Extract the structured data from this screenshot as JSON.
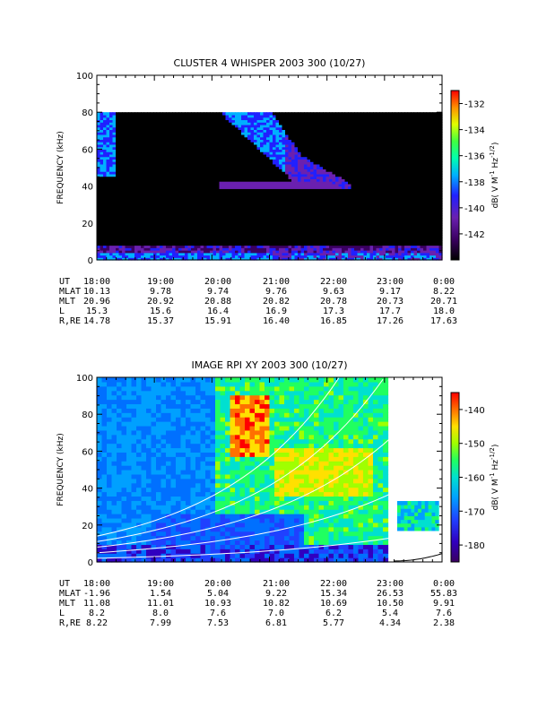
{
  "chart_data": [
    {
      "type": "heatmap",
      "title": "CLUSTER 4 WHISPER 2003 300 (10/27)",
      "ylabel": "FREQUENCY (kHz)",
      "ylim": [
        0,
        100
      ],
      "yticks": [
        "0",
        "20",
        "40",
        "60",
        "80",
        "100"
      ],
      "x_time_labels": [
        "18:00",
        "19:00",
        "20:00",
        "21:00",
        "22:00",
        "23:00",
        "0:00"
      ],
      "colorbar": {
        "label": "dB( V M",
        "label_parts": [
          "dB( V M",
          "-1",
          " Hz",
          "-1/2",
          ")"
        ],
        "range": [
          -144,
          -131
        ],
        "ticks": [
          "-132",
          "-134",
          "-136",
          "-138",
          "-140",
          "-142"
        ]
      },
      "data_range_khz": [
        0,
        80
      ],
      "features": [
        {
          "name": "broadband emission 18:00-18:05",
          "freq_khz": [
            45,
            80
          ]
        },
        {
          "name": "funnel-shaped emission 20:10-22:40",
          "freq_khz": [
            38,
            80
          ]
        }
      ],
      "ephemeris": {
        "row_labels": [
          "UT",
          "MLAT",
          "MLT",
          "L",
          "R,RE"
        ],
        "UT": [
          "18:00",
          "19:00",
          "20:00",
          "21:00",
          "22:00",
          "23:00",
          "0:00"
        ],
        "MLAT": [
          "10.13",
          "9.78",
          "9.74",
          "9.76",
          "9.63",
          "9.17",
          "8.22"
        ],
        "MLT": [
          "20.96",
          "20.92",
          "20.88",
          "20.82",
          "20.78",
          "20.73",
          "20.71"
        ],
        "L": [
          "15.3",
          "15.6",
          "16.4",
          "16.9",
          "17.3",
          "17.7",
          "18.0"
        ],
        "R,RE": [
          "14.78",
          "15.37",
          "15.91",
          "16.40",
          "16.85",
          "17.26",
          "17.63"
        ]
      }
    },
    {
      "type": "heatmap",
      "title": "IMAGE RPI XY 2003 300 (10/27)",
      "ylabel": "FREQUENCY (kHz)",
      "ylim": [
        0,
        100
      ],
      "yticks": [
        "0",
        "20",
        "40",
        "60",
        "80",
        "100"
      ],
      "x_time_labels": [
        "18:00",
        "19:00",
        "20:00",
        "21:00",
        "22:00",
        "23:00",
        "0:00"
      ],
      "colorbar": {
        "label": "dB( V M",
        "label_parts": [
          "dB( V M",
          "-1",
          " Hz",
          "-1/2",
          ")"
        ],
        "range": [
          -185,
          -135
        ],
        "ticks": [
          "-140",
          "-150",
          "-160",
          "-170",
          "-180"
        ]
      },
      "data_range_khz": [
        0,
        100
      ],
      "features": [
        {
          "name": "intense emission 20:30-21:00",
          "freq_khz": [
            55,
            90
          ]
        },
        {
          "name": "plasma frequency curves",
          "freq_khz": [
            0,
            70
          ]
        }
      ],
      "ephemeris": {
        "row_labels": [
          "UT",
          "MLAT",
          "MLT",
          "L",
          "R,RE"
        ],
        "UT": [
          "18:00",
          "19:00",
          "20:00",
          "21:00",
          "22:00",
          "23:00",
          "0:00"
        ],
        "MLAT": [
          "-1.96",
          "1.54",
          "5.04",
          "9.22",
          "15.34",
          "26.53",
          "55.83"
        ],
        "MLT": [
          "11.08",
          "11.01",
          "10.93",
          "10.82",
          "10.69",
          "10.50",
          "9.91"
        ],
        "L": [
          "8.2",
          "8.0",
          "7.6",
          "7.0",
          "6.2",
          "5.4",
          "7.6"
        ],
        "R,RE": [
          "8.22",
          "7.99",
          "7.53",
          "6.81",
          "5.77",
          "4.34",
          "2.38"
        ]
      }
    }
  ]
}
